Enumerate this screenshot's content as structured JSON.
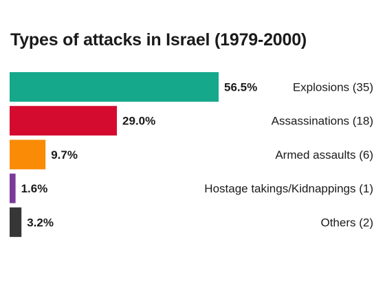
{
  "chart_data": {
    "type": "bar",
    "orientation": "horizontal",
    "title": "Types of attacks in Israel (1979-2000)",
    "categories": [
      "Explosions (35)",
      "Assassinations (18)",
      "Armed assaults (6)",
      "Hostage takings/Kidnappings  (1)",
      "Others (2)"
    ],
    "values": [
      56.5,
      29.0,
      9.7,
      1.6,
      3.2
    ],
    "value_labels": [
      "56.5%",
      "29.0%",
      "9.7%",
      "1.6%",
      "3.2%"
    ],
    "colors": [
      "#15a88b",
      "#d40b2f",
      "#f98b07",
      "#7b3a99",
      "#363636"
    ],
    "xlim": [
      0,
      56.5
    ],
    "grid": false,
    "legend": "none"
  }
}
